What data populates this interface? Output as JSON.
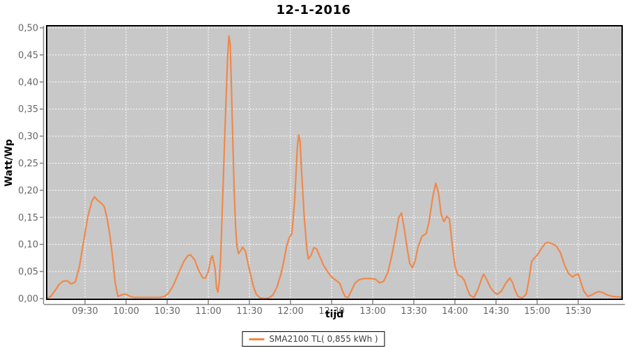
{
  "title": "12-1-2016",
  "colors": {
    "series": "#F0884B",
    "plot_bg": "#C8C8C8",
    "grid": "#FFFFFF",
    "tick_label": "#666666",
    "axis_line": "#848484",
    "border": "#000000"
  },
  "y_axis": {
    "title": "Watt/Wp",
    "tick_labels": [
      "0,00",
      "0,05",
      "0,10",
      "0,15",
      "0,20",
      "0,25",
      "0,30",
      "0,35",
      "0,40",
      "0,45",
      "0,50"
    ]
  },
  "x_axis": {
    "title": "tijd",
    "tick_labels": [
      "09:30",
      "10:00",
      "10:30",
      "11:00",
      "11:30",
      "12:00",
      "12:30",
      "13:00",
      "13:30",
      "14:00",
      "14:30",
      "15:00",
      "15:30"
    ]
  },
  "legend": {
    "label": "SMA2100 TL( 0,855 kWh )"
  },
  "chart_data": {
    "type": "line",
    "title": "12-1-2016",
    "xlabel": "tijd",
    "ylabel": "Watt/Wp",
    "ylim": [
      0,
      0.5
    ],
    "x_range": [
      "09:02",
      "16:02"
    ],
    "grid": true,
    "legend_position": "bottom",
    "series": [
      {
        "name": "SMA2100 TL( 0,855 kWh )",
        "color": "#F0884B",
        "total_kwh_label": "0,855 kWh",
        "points": [
          [
            "09:02",
            0.0
          ],
          [
            "09:05",
            0.004
          ],
          [
            "09:08",
            0.014
          ],
          [
            "09:11",
            0.026
          ],
          [
            "09:14",
            0.032
          ],
          [
            "09:17",
            0.033
          ],
          [
            "09:20",
            0.027
          ],
          [
            "09:23",
            0.031
          ],
          [
            "09:26",
            0.06
          ],
          [
            "09:29",
            0.105
          ],
          [
            "09:32",
            0.15
          ],
          [
            "09:35",
            0.18
          ],
          [
            "09:37",
            0.188
          ],
          [
            "09:39",
            0.182
          ],
          [
            "09:42",
            0.176
          ],
          [
            "09:44",
            0.17
          ],
          [
            "09:46",
            0.15
          ],
          [
            "09:48",
            0.12
          ],
          [
            "09:50",
            0.08
          ],
          [
            "09:52",
            0.03
          ],
          [
            "09:54",
            0.004
          ],
          [
            "09:56",
            0.006
          ],
          [
            "09:58",
            0.008
          ],
          [
            "10:00",
            0.008
          ],
          [
            "10:03",
            0.004
          ],
          [
            "10:06",
            0.002
          ],
          [
            "10:12",
            0.002
          ],
          [
            "10:18",
            0.002
          ],
          [
            "10:24",
            0.002
          ],
          [
            "10:28",
            0.004
          ],
          [
            "10:31",
            0.01
          ],
          [
            "10:34",
            0.022
          ],
          [
            "10:38",
            0.045
          ],
          [
            "10:42",
            0.068
          ],
          [
            "10:45",
            0.079
          ],
          [
            "10:47",
            0.081
          ],
          [
            "10:50",
            0.072
          ],
          [
            "10:53",
            0.052
          ],
          [
            "10:56",
            0.038
          ],
          [
            "10:58",
            0.038
          ],
          [
            "11:00",
            0.05
          ],
          [
            "11:02",
            0.075
          ],
          [
            "11:03",
            0.079
          ],
          [
            "11:05",
            0.055
          ],
          [
            "11:06",
            0.02
          ],
          [
            "11:07",
            0.012
          ],
          [
            "11:08",
            0.03
          ],
          [
            "11:09",
            0.075
          ],
          [
            "11:10",
            0.15
          ],
          [
            "11:12",
            0.3
          ],
          [
            "11:14",
            0.44
          ],
          [
            "11:15",
            0.485
          ],
          [
            "11:16",
            0.47
          ],
          [
            "11:17",
            0.38
          ],
          [
            "11:18",
            0.28
          ],
          [
            "11:19",
            0.19
          ],
          [
            "11:20",
            0.13
          ],
          [
            "11:21",
            0.095
          ],
          [
            "11:22",
            0.083
          ],
          [
            "11:24",
            0.09
          ],
          [
            "11:25",
            0.095
          ],
          [
            "11:27",
            0.088
          ],
          [
            "11:29",
            0.065
          ],
          [
            "11:31",
            0.042
          ],
          [
            "11:33",
            0.022
          ],
          [
            "11:35",
            0.008
          ],
          [
            "11:38",
            0.001
          ],
          [
            "11:41",
            0.0
          ],
          [
            "11:44",
            0.001
          ],
          [
            "11:47",
            0.006
          ],
          [
            "11:50",
            0.02
          ],
          [
            "11:53",
            0.045
          ],
          [
            "11:55",
            0.068
          ],
          [
            "11:57",
            0.095
          ],
          [
            "11:59",
            0.112
          ],
          [
            "12:01",
            0.12
          ],
          [
            "12:03",
            0.18
          ],
          [
            "12:05",
            0.28
          ],
          [
            "12:06",
            0.302
          ],
          [
            "12:07",
            0.29
          ],
          [
            "12:08",
            0.24
          ],
          [
            "12:10",
            0.15
          ],
          [
            "12:12",
            0.09
          ],
          [
            "12:13",
            0.073
          ],
          [
            "12:15",
            0.08
          ],
          [
            "12:17",
            0.094
          ],
          [
            "12:19",
            0.092
          ],
          [
            "12:21",
            0.08
          ],
          [
            "12:24",
            0.062
          ],
          [
            "12:27",
            0.05
          ],
          [
            "12:30",
            0.04
          ],
          [
            "12:33",
            0.034
          ],
          [
            "12:36",
            0.028
          ],
          [
            "12:38",
            0.014
          ],
          [
            "12:40",
            0.003
          ],
          [
            "12:42",
            0.002
          ],
          [
            "12:44",
            0.012
          ],
          [
            "12:47",
            0.028
          ],
          [
            "12:50",
            0.035
          ],
          [
            "12:54",
            0.037
          ],
          [
            "12:58",
            0.037
          ],
          [
            "13:02",
            0.036
          ],
          [
            "13:05",
            0.029
          ],
          [
            "13:08",
            0.032
          ],
          [
            "13:11",
            0.048
          ],
          [
            "13:14",
            0.08
          ],
          [
            "13:17",
            0.12
          ],
          [
            "13:19",
            0.15
          ],
          [
            "13:21",
            0.158
          ],
          [
            "13:23",
            0.13
          ],
          [
            "13:25",
            0.095
          ],
          [
            "13:27",
            0.065
          ],
          [
            "13:29",
            0.057
          ],
          [
            "13:31",
            0.07
          ],
          [
            "13:33",
            0.095
          ],
          [
            "13:36",
            0.115
          ],
          [
            "13:39",
            0.12
          ],
          [
            "13:41",
            0.14
          ],
          [
            "13:44",
            0.19
          ],
          [
            "13:46",
            0.213
          ],
          [
            "13:48",
            0.195
          ],
          [
            "13:50",
            0.155
          ],
          [
            "13:52",
            0.142
          ],
          [
            "13:54",
            0.152
          ],
          [
            "13:56",
            0.147
          ],
          [
            "13:58",
            0.1
          ],
          [
            "14:00",
            0.06
          ],
          [
            "14:02",
            0.044
          ],
          [
            "14:05",
            0.04
          ],
          [
            "14:07",
            0.033
          ],
          [
            "14:09",
            0.018
          ],
          [
            "14:11",
            0.006
          ],
          [
            "14:14",
            0.002
          ],
          [
            "14:17",
            0.018
          ],
          [
            "14:20",
            0.04
          ],
          [
            "14:21",
            0.045
          ],
          [
            "14:23",
            0.036
          ],
          [
            "14:26",
            0.02
          ],
          [
            "14:29",
            0.011
          ],
          [
            "14:31",
            0.008
          ],
          [
            "14:34",
            0.014
          ],
          [
            "14:37",
            0.028
          ],
          [
            "14:40",
            0.038
          ],
          [
            "14:42",
            0.03
          ],
          [
            "14:44",
            0.015
          ],
          [
            "14:46",
            0.004
          ],
          [
            "14:49",
            0.001
          ],
          [
            "14:52",
            0.008
          ],
          [
            "14:54",
            0.035
          ],
          [
            "14:56",
            0.068
          ],
          [
            "14:58",
            0.075
          ],
          [
            "15:00",
            0.08
          ],
          [
            "15:03",
            0.092
          ],
          [
            "15:06",
            0.102
          ],
          [
            "15:08",
            0.104
          ],
          [
            "15:11",
            0.101
          ],
          [
            "15:14",
            0.097
          ],
          [
            "15:17",
            0.085
          ],
          [
            "15:20",
            0.062
          ],
          [
            "15:23",
            0.046
          ],
          [
            "15:26",
            0.04
          ],
          [
            "15:28",
            0.044
          ],
          [
            "15:30",
            0.045
          ],
          [
            "15:32",
            0.03
          ],
          [
            "15:34",
            0.014
          ],
          [
            "15:37",
            0.004
          ],
          [
            "15:40",
            0.007
          ],
          [
            "15:43",
            0.011
          ],
          [
            "15:45",
            0.013
          ],
          [
            "15:48",
            0.011
          ],
          [
            "15:51",
            0.007
          ],
          [
            "15:55",
            0.004
          ],
          [
            "16:00",
            0.003
          ],
          [
            "16:02",
            0.002
          ]
        ]
      }
    ]
  }
}
